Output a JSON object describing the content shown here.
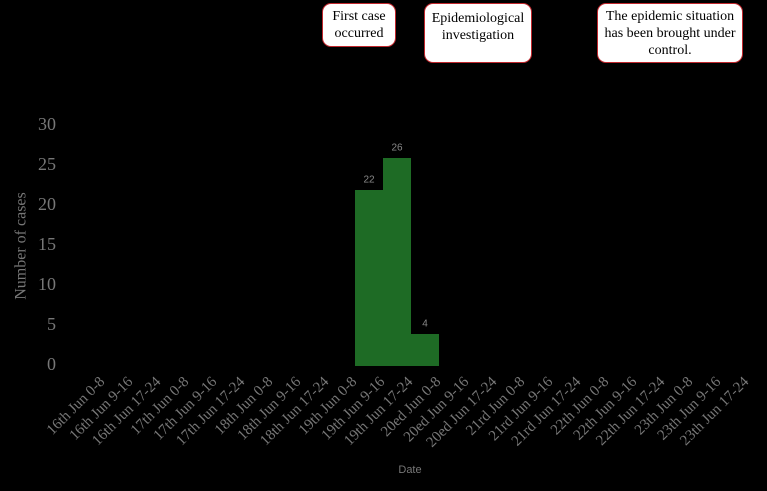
{
  "chart_data": {
    "type": "bar",
    "x_label": "Date",
    "y_label": "Number of cases",
    "categories": [
      "16th Jun 0-8",
      "16th Jun 9-16",
      "16th Jun 17-24",
      "17th Jun 0-8",
      "17th Jun 9-16",
      "17th Jun 17-24",
      "18th Jun 0-8",
      "18th Jun 9-16",
      "18th Jun 17-24",
      "19th Jun 0-8",
      "19th Jun 9-16",
      "19th Jun 17-24",
      "20ed Jun 0-8",
      "20ed Jun 9-16",
      "20ed Jun 17-24",
      "21rd Jun 0-8",
      "21rd Jun 9-16",
      "21rd Jun 17-24",
      "22th Jun 0-8",
      "22th Jun 9-16",
      "22th Jun 17-24",
      "23th Jun 0-8",
      "23th Jun 9-16",
      "23th Jun 17-24"
    ],
    "values": [
      0,
      0,
      0,
      0,
      0,
      0,
      0,
      0,
      0,
      22,
      26,
      4,
      0,
      0,
      0,
      0,
      0,
      0,
      0,
      0,
      0,
      0,
      0,
      0
    ],
    "color": "#1e6b25",
    "ylim": [
      0,
      30
    ],
    "yticks": [
      0,
      5,
      10,
      15,
      20,
      25,
      30
    ],
    "annotations": [
      "First case occurred",
      "Epidemiological investigation",
      "The epidemic situation has been brought under control."
    ]
  }
}
